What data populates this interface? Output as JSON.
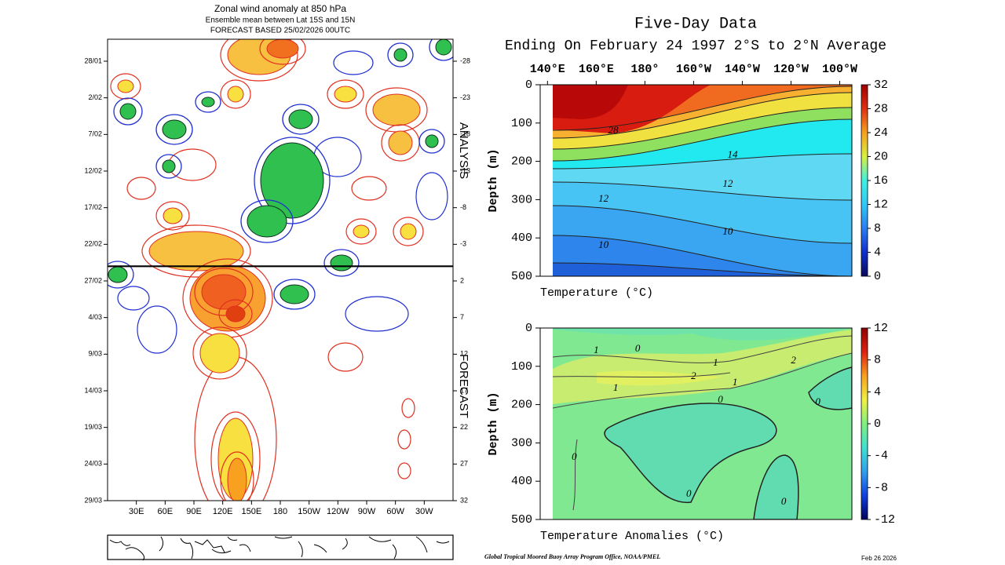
{
  "chart_data": [
    {
      "type": "hovmoller",
      "title": "Zonal wind anomaly at 850 hPa",
      "subtitle": "Ensemble mean between  Lat 15S and 15N",
      "subtitle2": "FORECAST  BASED 25/02/2026 00UTC",
      "categories": [
        "28/01",
        "2/02",
        "7/02",
        "12/02",
        "17/02",
        "22/02",
        "27/02",
        "4/03",
        "9/03",
        "14/03",
        "19/03",
        "24/03",
        "29/03"
      ],
      "xlim": [
        0,
        360
      ],
      "xticks": [
        {
          "value": 30,
          "label": "30E"
        },
        {
          "value": 60,
          "label": "60E"
        },
        {
          "value": 90,
          "label": "90E"
        },
        {
          "value": 120,
          "label": "120E"
        },
        {
          "value": 150,
          "label": "150E"
        },
        180,
        {
          "value": 210,
          "label": "150W"
        },
        {
          "value": 240,
          "label": "120W"
        },
        {
          "value": 270,
          "label": "90W"
        },
        {
          "value": 300,
          "label": "60W"
        },
        {
          "value": 330,
          "label": "30W"
        }
      ],
      "y2lim": [
        -31,
        32
      ],
      "y2_reversed": true,
      "y2ticks": [
        -28,
        -23,
        -18,
        -13,
        -8,
        -3,
        2,
        7,
        12,
        17,
        22,
        27,
        32
      ],
      "forecast_start": 0,
      "section_labels": [
        "ANALYSIS",
        "FORECAST"
      ]
    },
    {
      "type": "depth_section",
      "title": "Five-Day Data",
      "subtitle": "Ending On February 24 1997  2°S to 2°N Average",
      "xlabel": "Temperature (°C)",
      "ylabel": "Depth (m)",
      "xlim": [
        137,
        265
      ],
      "xticks": [
        {
          "value": 140,
          "label": "140°E"
        },
        {
          "value": 160,
          "label": "160°E"
        },
        {
          "value": 180,
          "label": "180°"
        },
        {
          "value": 200,
          "label": "160°W"
        },
        {
          "value": 220,
          "label": "140°W"
        },
        {
          "value": 240,
          "label": "120°W"
        },
        {
          "value": 260,
          "label": "100°W"
        }
      ],
      "ylim": [
        0,
        500
      ],
      "y_reversed": true,
      "yticks": [
        0,
        100,
        200,
        300,
        400,
        500
      ],
      "colorbar_lim": [
        0,
        32
      ],
      "colorbar_ticks": [
        0,
        4,
        8,
        12,
        16,
        20,
        24,
        28,
        32
      ],
      "colormap": [
        "#0a0a5e",
        "#1030d0",
        "#2a7ef0",
        "#30c8f8",
        "#40f0e0",
        "#d8f040",
        "#f8a020",
        "#e03010",
        "#a00000"
      ],
      "contour_labels": [
        {
          "value": 28,
          "x": 167,
          "y": 121
        },
        {
          "value": 14,
          "x": 216,
          "y": 184
        },
        {
          "value": 12,
          "x": 214,
          "y": 260
        },
        {
          "value": 12,
          "x": 163,
          "y": 299
        },
        {
          "value": 10,
          "x": 214,
          "y": 385
        },
        {
          "value": 10,
          "x": 163,
          "y": 420
        }
      ]
    },
    {
      "type": "depth_section",
      "xlabel": "Temperature Anomalies (°C)",
      "ylabel": "Depth (m)",
      "xlim": [
        137,
        265
      ],
      "ylim": [
        0,
        500
      ],
      "y_reversed": true,
      "yticks": [
        0,
        100,
        200,
        300,
        400,
        500
      ],
      "colorbar_lim": [
        -12,
        12
      ],
      "colorbar_ticks": [
        -12,
        -8,
        -4,
        0,
        4,
        8,
        12
      ],
      "colormap": [
        "#000060",
        "#1040e0",
        "#30a0f0",
        "#40e0d0",
        "#80f080",
        "#f0f040",
        "#f8a020",
        "#e02010",
        "#900000"
      ],
      "contour_labels": [
        {
          "value": 1,
          "x": 160,
          "y": 59
        },
        {
          "value": 0,
          "x": 177,
          "y": 55
        },
        {
          "value": 1,
          "x": 209,
          "y": 92
        },
        {
          "value": 2,
          "x": 241,
          "y": 86
        },
        {
          "value": 2,
          "x": 200,
          "y": 127
        },
        {
          "value": 1,
          "x": 217,
          "y": 143
        },
        {
          "value": 1,
          "x": 168,
          "y": 158
        },
        {
          "value": 0,
          "x": 211,
          "y": 189
        },
        {
          "value": 0,
          "x": 251,
          "y": 195
        },
        {
          "value": 0,
          "x": 151,
          "y": 338
        },
        {
          "value": 0,
          "x": 198,
          "y": 434
        },
        {
          "value": 0,
          "x": 237,
          "y": 455
        }
      ]
    }
  ],
  "footer": "Global Tropical Moored Buoy Array Program Office, NOAA/PMEL",
  "date": "Feb 26 2026"
}
